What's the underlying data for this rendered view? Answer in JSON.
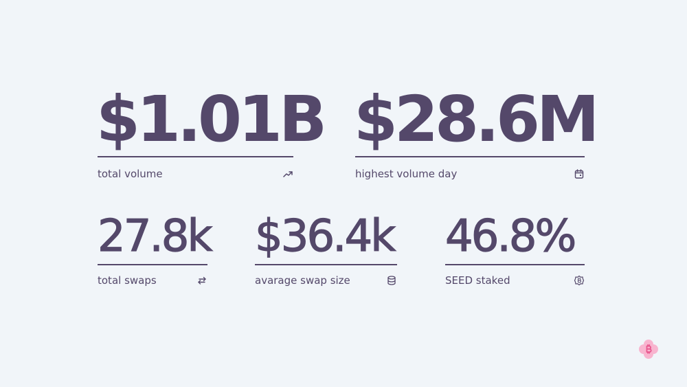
{
  "stats": {
    "total_volume": {
      "value": "$1.01B",
      "label": "total volume",
      "icon": "trending-up-icon"
    },
    "highest_volume_day": {
      "value": "$28.6M",
      "label": "highest volume day",
      "icon": "calendar-icon"
    },
    "total_swaps": {
      "value": "27.8k",
      "label": "total swaps",
      "icon": "swap-arrows-icon"
    },
    "average_swap_size": {
      "value": "$36.4k",
      "label": "avarage swap size",
      "icon": "database-icon"
    },
    "seed_staked": {
      "value": "46.8%",
      "label": "SEED staked",
      "icon": "seed-token-icon"
    }
  },
  "colors": {
    "background": "#f1f5f9",
    "text": "#54486a",
    "logo_petal": "#f8b4cf",
    "logo_mark": "#e8578e"
  },
  "logo": {
    "icon": "bitcoin-flower-logo"
  }
}
